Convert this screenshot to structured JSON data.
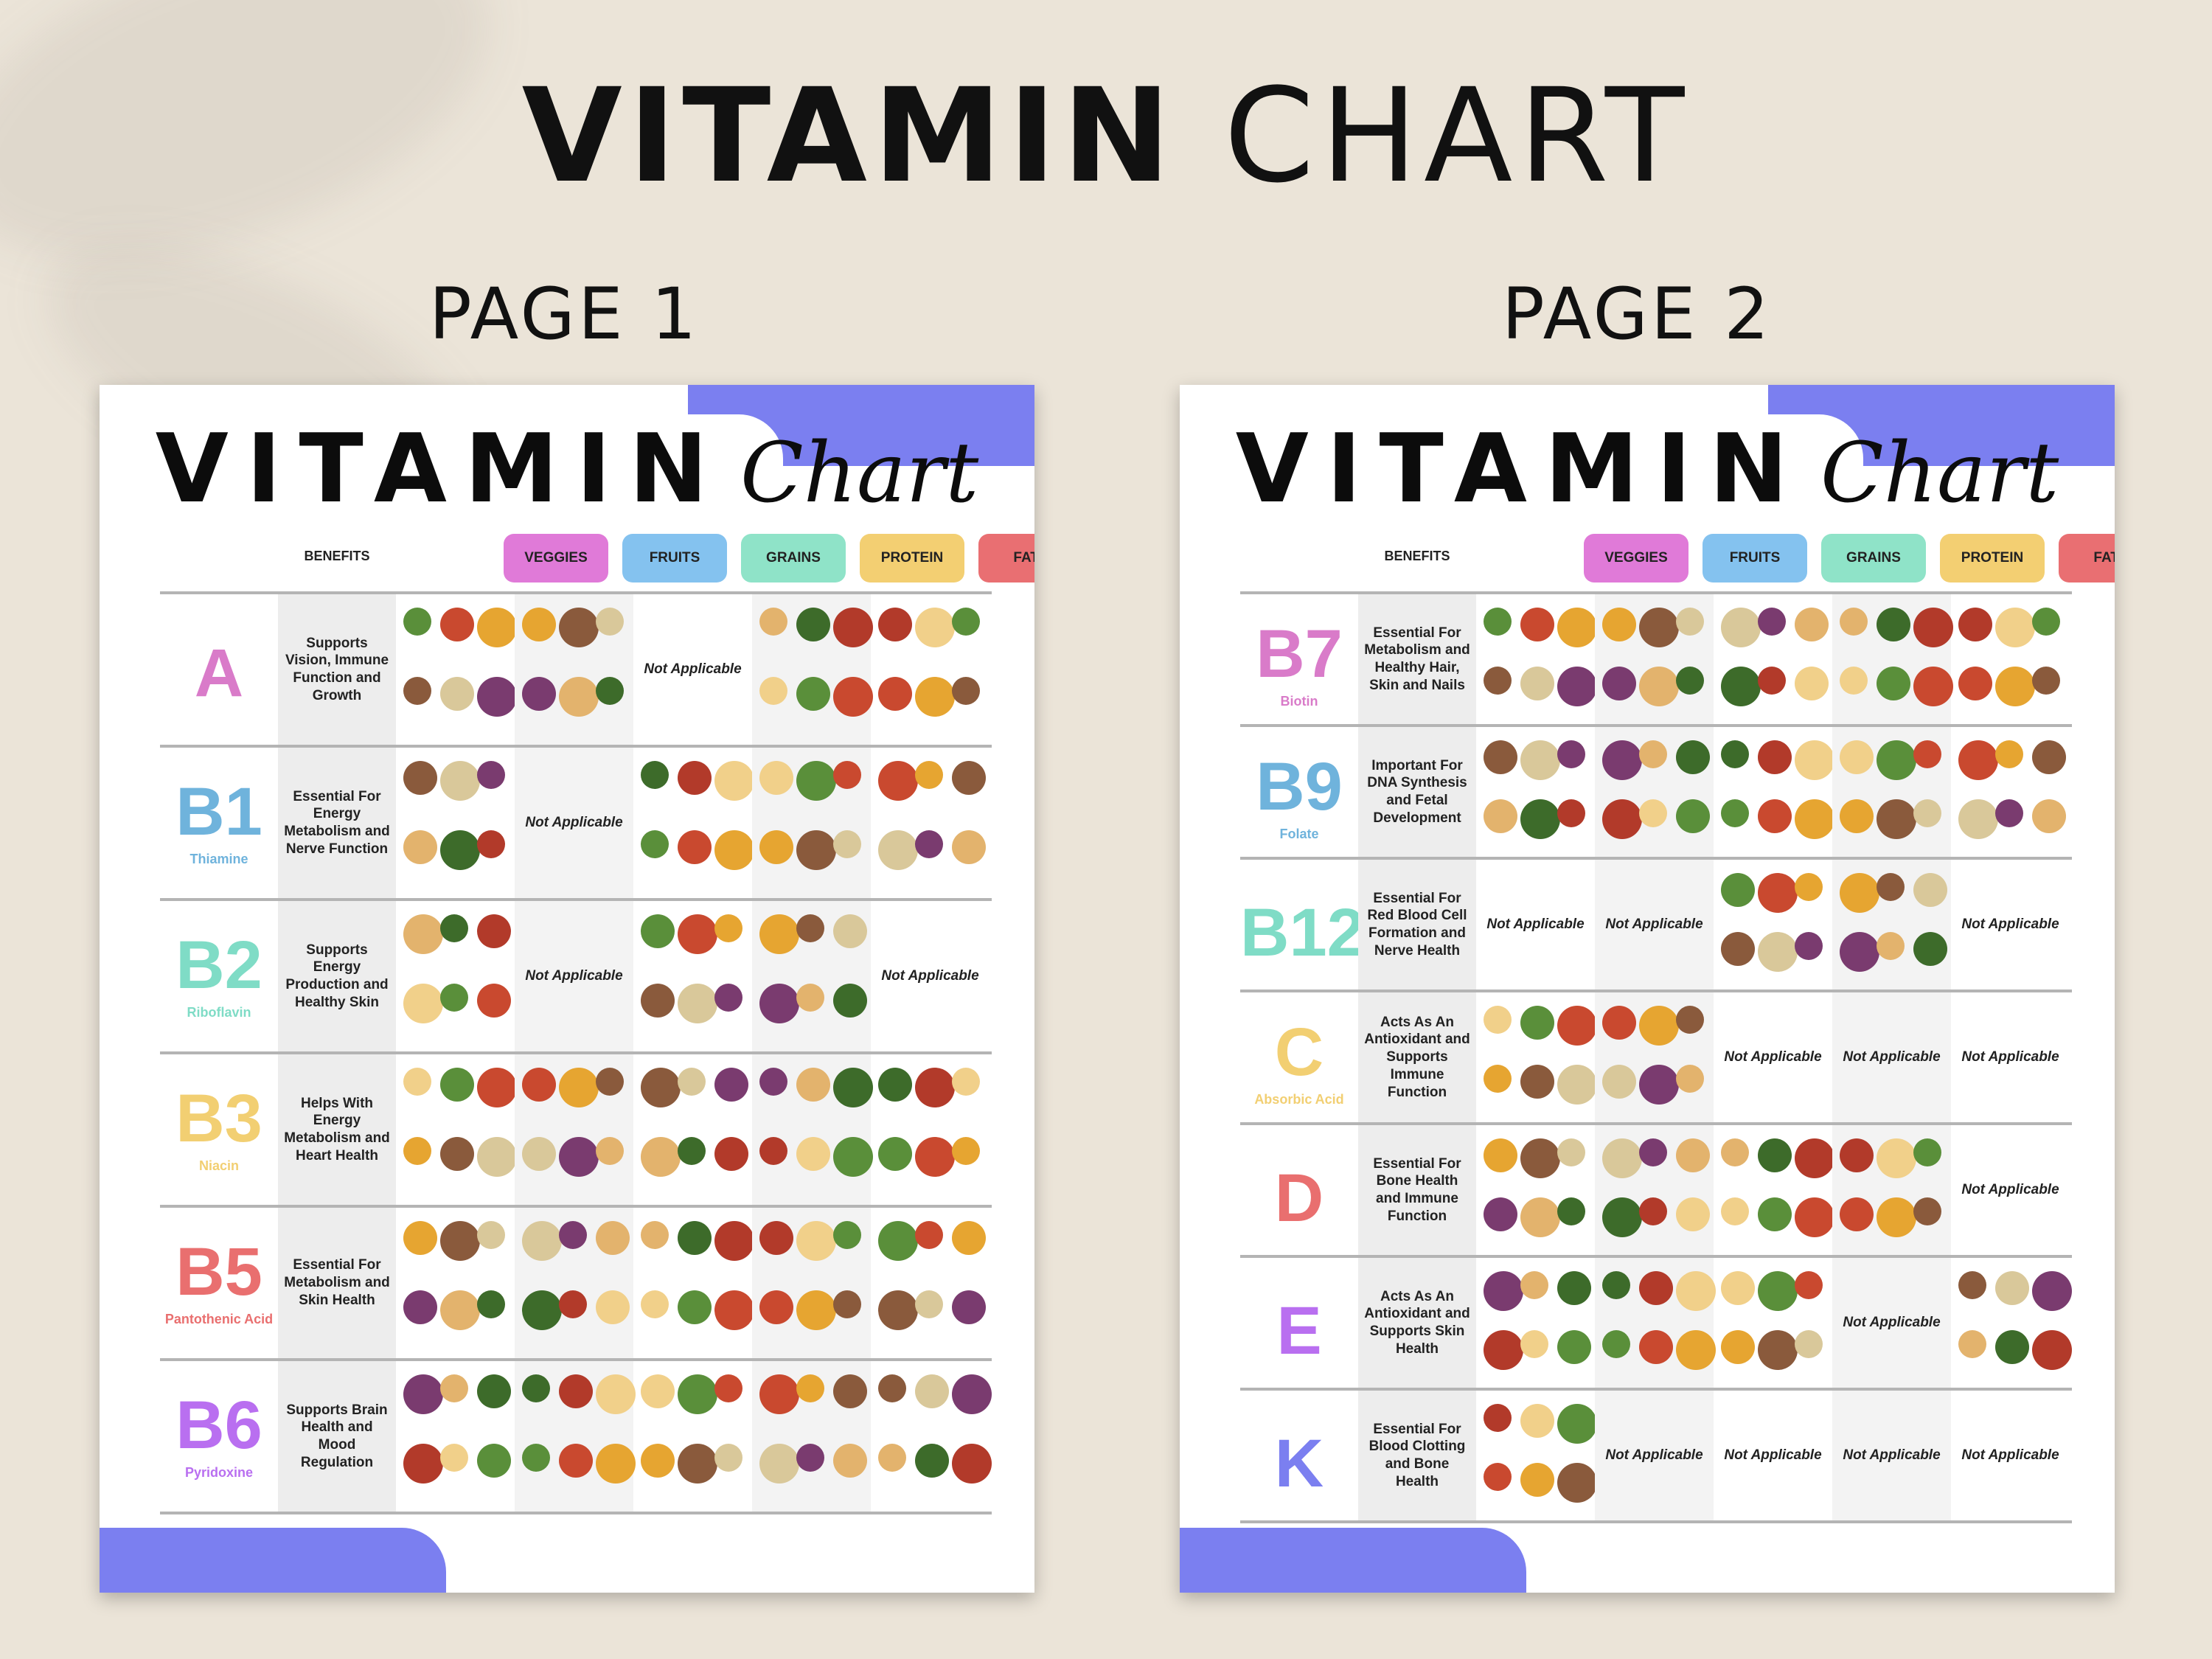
{
  "title": {
    "bold": "VITAMIN",
    "light": "CHART"
  },
  "pages": [
    {
      "label": "PAGE 1",
      "sheet_title": {
        "main": "VITAMIN",
        "script": "Chart"
      },
      "headers": {
        "benefits": "BENEFITS",
        "cats": [
          "VEGGIES",
          "FRUITS",
          "GRAINS",
          "PROTEIN",
          "FATS"
        ]
      },
      "rows": [
        {
          "vit": "A",
          "sub": "",
          "color": "#d97bc9",
          "benefit": "Supports Vision, Immune Function and Growth",
          "cells": [
            "foods",
            "foods",
            "Not Applicable",
            "foods",
            "foods"
          ]
        },
        {
          "vit": "B1",
          "sub": "Thiamine",
          "color": "#6fb3dc",
          "benefit": "Essential For Energy Metabolism and Nerve Function",
          "cells": [
            "foods",
            "Not Applicable",
            "foods",
            "foods",
            "foods"
          ]
        },
        {
          "vit": "B2",
          "sub": "Riboflavin",
          "color": "#7fdcc6",
          "benefit": "Supports Energy Production and Healthy Skin",
          "cells": [
            "foods",
            "Not Applicable",
            "foods",
            "foods",
            "Not Applicable"
          ]
        },
        {
          "vit": "B3",
          "sub": "Niacin",
          "color": "#f2cf72",
          "benefit": "Helps With Energy Metabolism and Heart Health",
          "cells": [
            "foods",
            "foods",
            "foods",
            "foods",
            "foods"
          ]
        },
        {
          "vit": "B5",
          "sub": "Pantothenic Acid",
          "color": "#e96f6f",
          "benefit": "Essential For Metabolism and Skin Health",
          "cells": [
            "foods",
            "foods",
            "foods",
            "foods",
            "foods"
          ]
        },
        {
          "vit": "B6",
          "sub": "Pyridoxine",
          "color": "#b96ff0",
          "benefit": "Supports Brain Health and Mood Regulation",
          "cells": [
            "foods",
            "foods",
            "foods",
            "foods",
            "foods"
          ]
        }
      ]
    },
    {
      "label": "PAGE 2",
      "sheet_title": {
        "main": "VITAMIN",
        "script": "Chart"
      },
      "headers": {
        "benefits": "BENEFITS",
        "cats": [
          "VEGGIES",
          "FRUITS",
          "GRAINS",
          "PROTEIN",
          "FATS"
        ]
      },
      "rows": [
        {
          "vit": "B7",
          "sub": "Biotin",
          "color": "#d97bc9",
          "benefit": "Essential For Metabolism and Healthy Hair, Skin and Nails",
          "cells": [
            "foods",
            "foods",
            "foods",
            "foods",
            "foods"
          ]
        },
        {
          "vit": "B9",
          "sub": "Folate",
          "color": "#6fb3dc",
          "benefit": "Important For DNA Synthesis and Fetal Development",
          "cells": [
            "foods",
            "foods",
            "foods",
            "foods",
            "foods"
          ]
        },
        {
          "vit": "B12",
          "sub": "",
          "color": "#7fdcc6",
          "benefit": "Essential For Red Blood Cell Formation and Nerve Health",
          "cells": [
            "Not Applicable",
            "Not Applicable",
            "foods",
            "foods",
            "Not Applicable"
          ]
        },
        {
          "vit": "C",
          "sub": "Absorbic Acid",
          "color": "#f2cf72",
          "benefit": "Acts As An Antioxidant and Supports Immune Function",
          "cells": [
            "foods",
            "foods",
            "Not Applicable",
            "Not Applicable",
            "Not Applicable"
          ]
        },
        {
          "vit": "D",
          "sub": "",
          "color": "#e96f6f",
          "benefit": "Essential For Bone Health and Immune Function",
          "cells": [
            "foods",
            "foods",
            "foods",
            "foods",
            "Not Applicable"
          ]
        },
        {
          "vit": "E",
          "sub": "",
          "color": "#b96ff0",
          "benefit": "Acts As An Antioxidant and Supports Skin Health",
          "cells": [
            "foods",
            "foods",
            "foods",
            "Not Applicable",
            "foods"
          ]
        },
        {
          "vit": "K",
          "sub": "",
          "color": "#7b7ff0",
          "benefit": "Essential For Blood Clotting and Bone Health",
          "cells": [
            "foods",
            "Not Applicable",
            "Not Applicable",
            "Not Applicable",
            "Not Applicable"
          ]
        }
      ]
    }
  ],
  "pill_colors": [
    "#e07ad8",
    "#84c2ef",
    "#8fe3c8",
    "#f3cf72",
    "#e96f72"
  ]
}
